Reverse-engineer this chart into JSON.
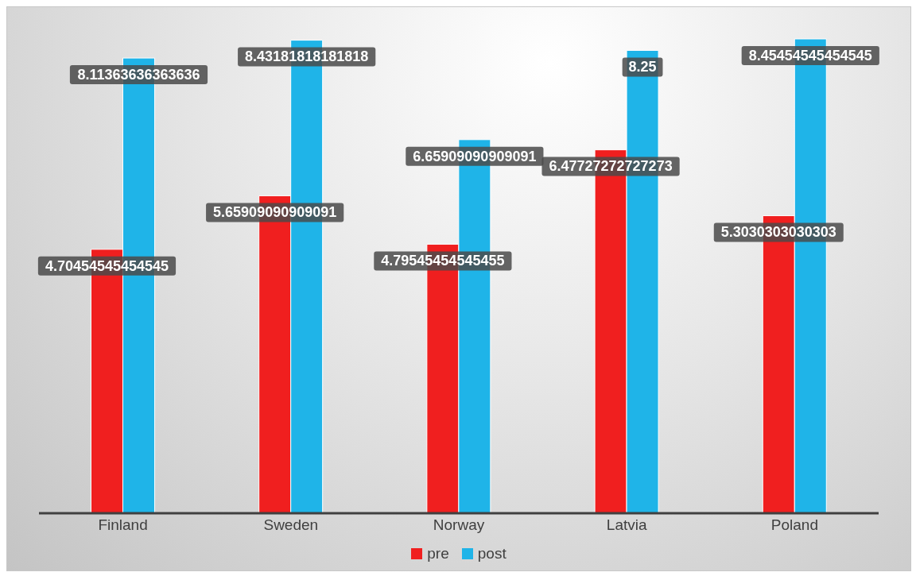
{
  "chart_data": {
    "type": "bar",
    "categories": [
      "Finland",
      "Sweden",
      "Norway",
      "Latvia",
      "Poland"
    ],
    "series": [
      {
        "name": "pre",
        "color": "#f01f1f",
        "values": [
          4.70454545454545,
          5.65909090909091,
          4.79545454545455,
          6.47727272727273,
          5.3030303030303
        ]
      },
      {
        "name": "post",
        "color": "#1fb4e8",
        "values": [
          8.11363636363636,
          8.43181818181818,
          6.65909090909091,
          8.25,
          8.45454545454545
        ]
      }
    ],
    "data_labels": true,
    "legend": "bottom"
  }
}
